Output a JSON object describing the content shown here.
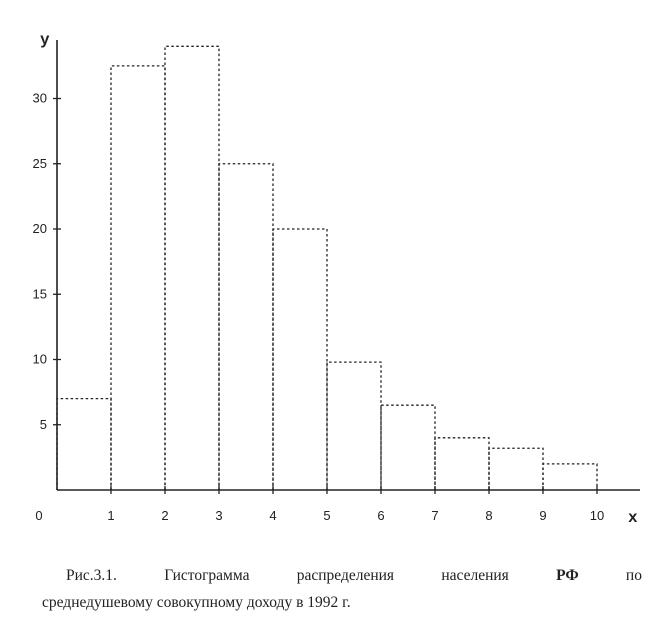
{
  "chart_data": {
    "type": "bar",
    "subtype": "histogram",
    "bins": [
      {
        "from": 0,
        "to": 1,
        "value": 7
      },
      {
        "from": 1,
        "to": 2,
        "value": 32.5
      },
      {
        "from": 2,
        "to": 3,
        "value": 34
      },
      {
        "from": 3,
        "to": 4,
        "value": 25
      },
      {
        "from": 4,
        "to": 5,
        "value": 20
      },
      {
        "from": 5,
        "to": 6,
        "value": 9.8
      },
      {
        "from": 6,
        "to": 7,
        "value": 6.5
      },
      {
        "from": 7,
        "to": 8,
        "value": 4
      },
      {
        "from": 8,
        "to": 9,
        "value": 3.2
      },
      {
        "from": 9,
        "to": 10,
        "value": 2
      }
    ],
    "xlabel": "x",
    "ylabel": "y",
    "xlim": [
      0,
      11
    ],
    "ylim": [
      0,
      35
    ],
    "x_ticks": [
      "0",
      "1",
      "2",
      "3",
      "4",
      "5",
      "6",
      "7",
      "8",
      "9",
      "10"
    ],
    "y_ticks": [
      "5",
      "10",
      "15",
      "20",
      "25",
      "30"
    ],
    "bar_style": "dotted outline",
    "grid": false,
    "colors": {
      "ink": "#222222",
      "background": "#ffffff"
    }
  },
  "caption": {
    "line1_words": [
      "Рис.3.1.",
      "Гистограмма",
      "распределения",
      "населения",
      "РФ",
      "по"
    ],
    "line2": "среднедушевому совокупному доходу в 1992 г."
  }
}
